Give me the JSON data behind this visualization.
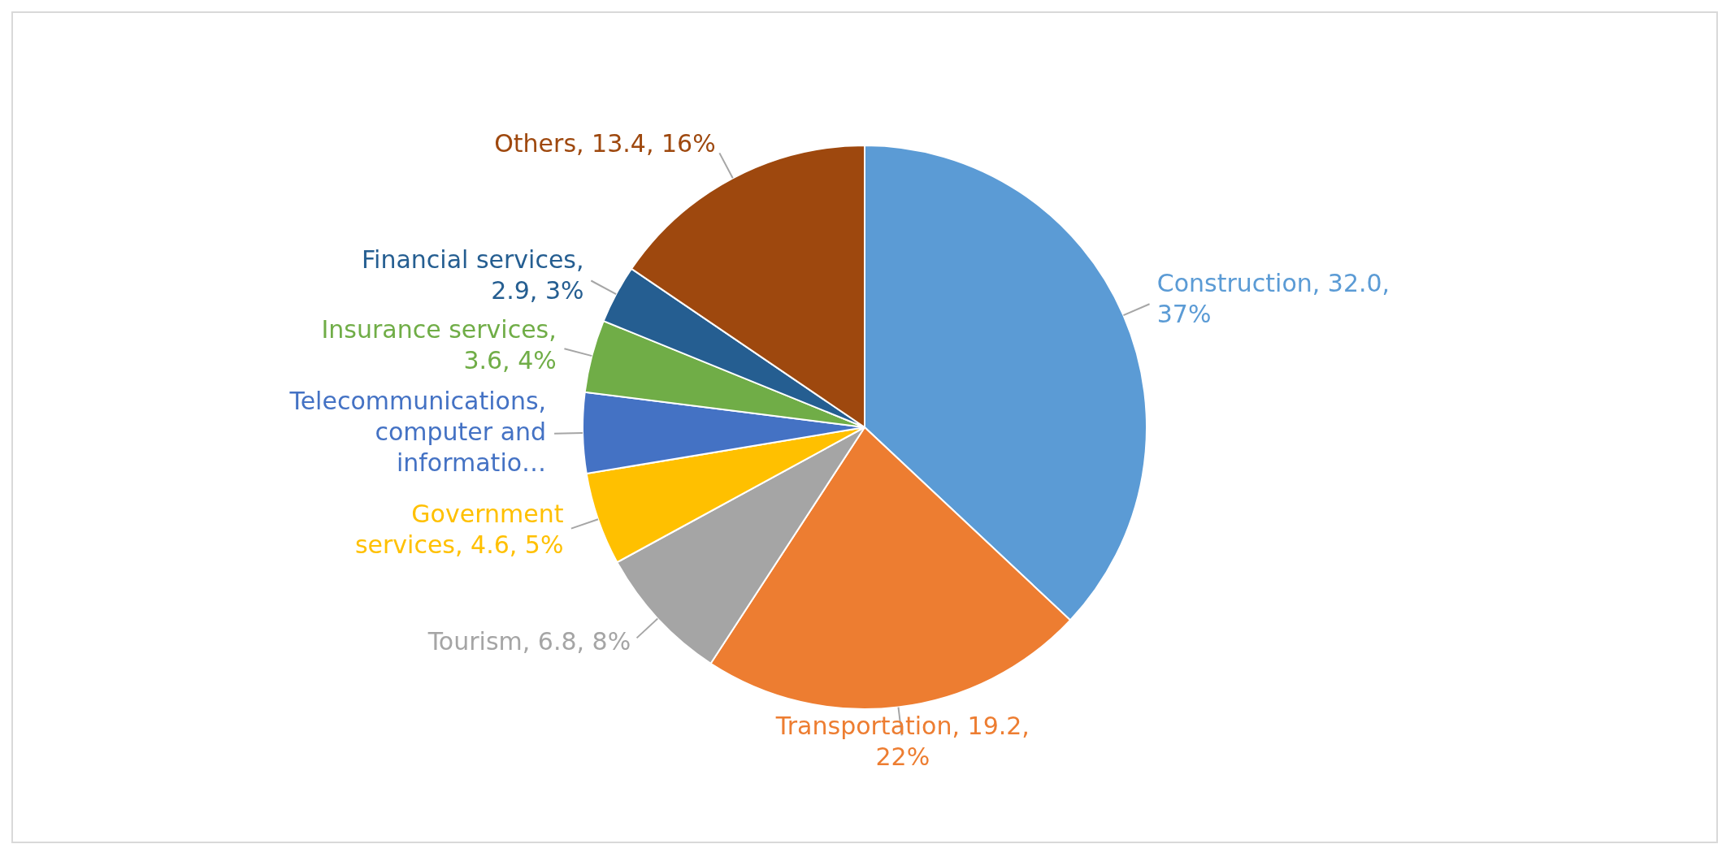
{
  "chart_data": {
    "type": "pie",
    "categories": [
      "Construction",
      "Transportation",
      "Tourism",
      "Government services",
      "Telecommunications, computer and informatio…",
      "Insurance services",
      "Financial services",
      "Others"
    ],
    "values": [
      32.0,
      19.2,
      6.8,
      4.6,
      4.0,
      3.6,
      2.9,
      13.4
    ],
    "colors": [
      "#5b9bd5",
      "#ed7d31",
      "#a5a5a5",
      "#ffc000",
      "#4472c4",
      "#70ad47",
      "#255e91",
      "#9e480e"
    ],
    "value_labels": [
      ", 32.0, 37%",
      ", 19.2, 22%",
      ", 6.8, 8%",
      ", 4.6, 5%",
      null,
      ", 3.6, 4%",
      ", 2.9, 3%",
      ", 13.4, 16%"
    ],
    "legend": false
  }
}
